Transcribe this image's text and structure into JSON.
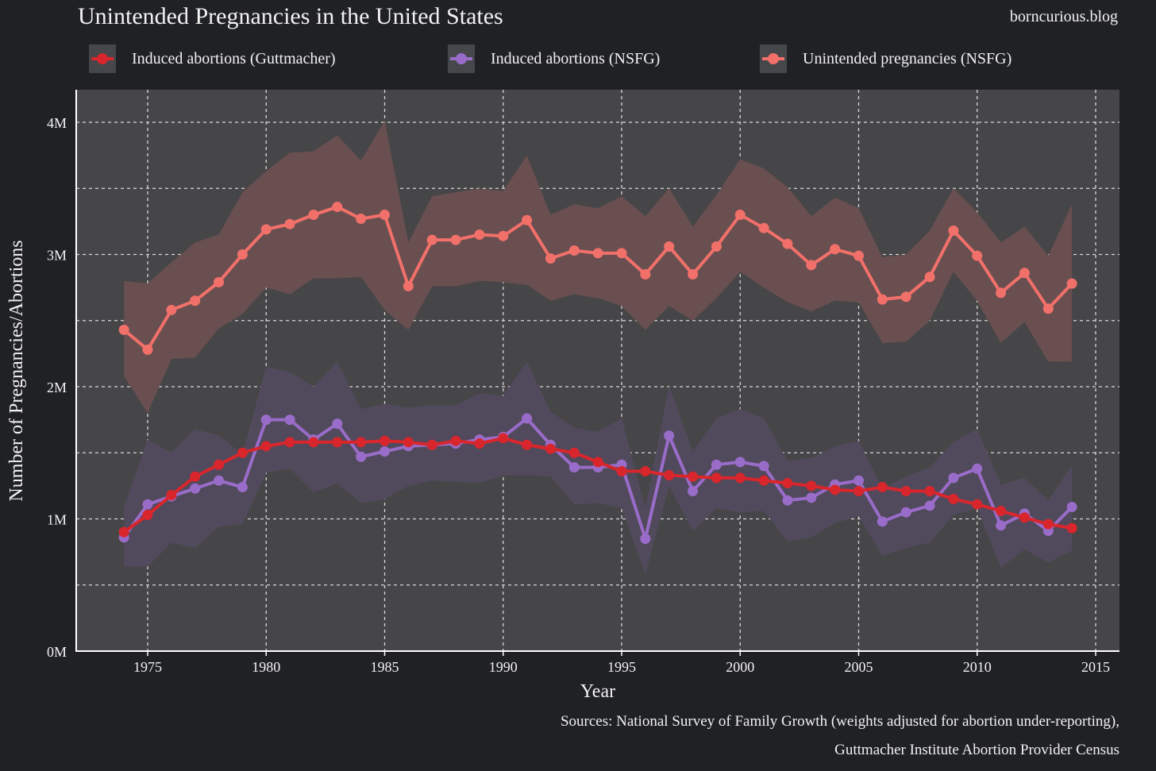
{
  "chart_data": {
    "type": "line",
    "title": "Unintended Pregnancies in the United States",
    "brand": "borncurious.blog",
    "xlabel": "Year",
    "ylabel": "Number of Pregnancies/Abortions",
    "xlim": [
      1972,
      2016
    ],
    "ylim": [
      0,
      4.25
    ],
    "x_ticks": [
      1975,
      1980,
      1985,
      1990,
      1995,
      2000,
      2005,
      2010,
      2015
    ],
    "y_ticks": [
      0,
      1,
      2,
      3,
      4
    ],
    "y_tick_labels": [
      "0M",
      "1M",
      "2M",
      "3M",
      "4M"
    ],
    "grid": true,
    "legend_position": "top",
    "x": [
      1974,
      1975,
      1976,
      1977,
      1978,
      1979,
      1980,
      1981,
      1982,
      1983,
      1984,
      1985,
      1986,
      1987,
      1988,
      1989,
      1990,
      1991,
      1992,
      1993,
      1994,
      1995,
      1996,
      1997,
      1998,
      1999,
      2000,
      2001,
      2002,
      2003,
      2004,
      2005,
      2006,
      2007,
      2008,
      2009,
      2010,
      2011,
      2012,
      2013,
      2014
    ],
    "series": [
      {
        "name": "Induced abortions (Guttmacher)",
        "color": "#d9262c",
        "band_color": null,
        "values": [
          0.9,
          1.03,
          1.18,
          1.32,
          1.41,
          1.5,
          1.55,
          1.58,
          1.58,
          1.58,
          1.58,
          1.59,
          1.58,
          1.56,
          1.59,
          1.57,
          1.61,
          1.56,
          1.53,
          1.5,
          1.43,
          1.36,
          1.36,
          1.33,
          1.32,
          1.31,
          1.31,
          1.29,
          1.27,
          1.25,
          1.22,
          1.21,
          1.24,
          1.21,
          1.21,
          1.15,
          1.11,
          1.06,
          1.01,
          0.96,
          0.93
        ]
      },
      {
        "name": "Induced abortions (NSFG)",
        "color": "#9a6cc9",
        "band_color": "#514a5c",
        "values": [
          0.86,
          1.11,
          1.17,
          1.23,
          1.29,
          1.24,
          1.75,
          1.75,
          1.6,
          1.72,
          1.47,
          1.51,
          1.55,
          1.56,
          1.57,
          1.6,
          1.62,
          1.76,
          1.56,
          1.39,
          1.39,
          1.41,
          0.85,
          1.63,
          1.21,
          1.41,
          1.43,
          1.4,
          1.14,
          1.16,
          1.26,
          1.29,
          0.98,
          1.05,
          1.1,
          1.31,
          1.38,
          0.95,
          1.04,
          0.91,
          1.09
        ],
        "upper": [
          1.09,
          1.6,
          1.5,
          1.68,
          1.63,
          1.49,
          2.15,
          2.11,
          2.0,
          2.19,
          1.83,
          1.87,
          1.84,
          1.86,
          1.86,
          1.95,
          1.93,
          2.19,
          1.81,
          1.69,
          1.66,
          1.76,
          1.08,
          2.01,
          1.51,
          1.76,
          1.83,
          1.76,
          1.44,
          1.46,
          1.55,
          1.59,
          1.23,
          1.32,
          1.39,
          1.58,
          1.68,
          1.26,
          1.31,
          1.14,
          1.41
        ],
        "lower": [
          0.64,
          0.64,
          0.82,
          0.78,
          0.94,
          0.96,
          1.35,
          1.38,
          1.2,
          1.27,
          1.12,
          1.15,
          1.25,
          1.29,
          1.28,
          1.27,
          1.33,
          1.33,
          1.32,
          1.11,
          1.12,
          1.08,
          0.58,
          1.25,
          0.91,
          1.08,
          1.05,
          1.06,
          0.83,
          0.86,
          0.97,
          1.02,
          0.72,
          0.78,
          0.82,
          1.03,
          1.08,
          0.63,
          0.77,
          0.67,
          0.76
        ]
      },
      {
        "name": "Unintended pregnancies (NSFG)",
        "color": "#f2706a",
        "band_color": "#6a4f50",
        "values": [
          2.43,
          2.28,
          2.58,
          2.65,
          2.79,
          3.0,
          3.19,
          3.23,
          3.3,
          3.36,
          3.27,
          3.3,
          2.76,
          3.11,
          3.11,
          3.15,
          3.14,
          3.26,
          2.97,
          3.03,
          3.01,
          3.01,
          2.85,
          3.06,
          2.85,
          3.06,
          3.3,
          3.2,
          3.08,
          2.92,
          3.04,
          2.99,
          2.66,
          2.68,
          2.83,
          3.18,
          2.99,
          2.71,
          2.86,
          2.59,
          2.78
        ],
        "upper": [
          2.8,
          2.78,
          2.94,
          3.09,
          3.15,
          3.47,
          3.63,
          3.77,
          3.78,
          3.9,
          3.71,
          4.01,
          3.09,
          3.44,
          3.47,
          3.5,
          3.48,
          3.75,
          3.3,
          3.38,
          3.35,
          3.44,
          3.29,
          3.5,
          3.21,
          3.45,
          3.72,
          3.65,
          3.51,
          3.29,
          3.43,
          3.35,
          2.98,
          3.0,
          3.18,
          3.5,
          3.32,
          3.09,
          3.21,
          2.99,
          3.38
        ],
        "lower": [
          2.08,
          1.8,
          2.21,
          2.22,
          2.44,
          2.55,
          2.75,
          2.7,
          2.82,
          2.82,
          2.83,
          2.58,
          2.43,
          2.76,
          2.76,
          2.8,
          2.79,
          2.77,
          2.65,
          2.7,
          2.67,
          2.61,
          2.43,
          2.61,
          2.5,
          2.67,
          2.87,
          2.75,
          2.64,
          2.57,
          2.65,
          2.64,
          2.33,
          2.34,
          2.5,
          2.87,
          2.65,
          2.33,
          2.49,
          2.19,
          2.19
        ]
      }
    ],
    "sources": [
      "Sources: National Survey of Family Growth (weights adjusted for abortion under-reporting),",
      "Guttmacher Institute Abortion Provider Census"
    ]
  }
}
